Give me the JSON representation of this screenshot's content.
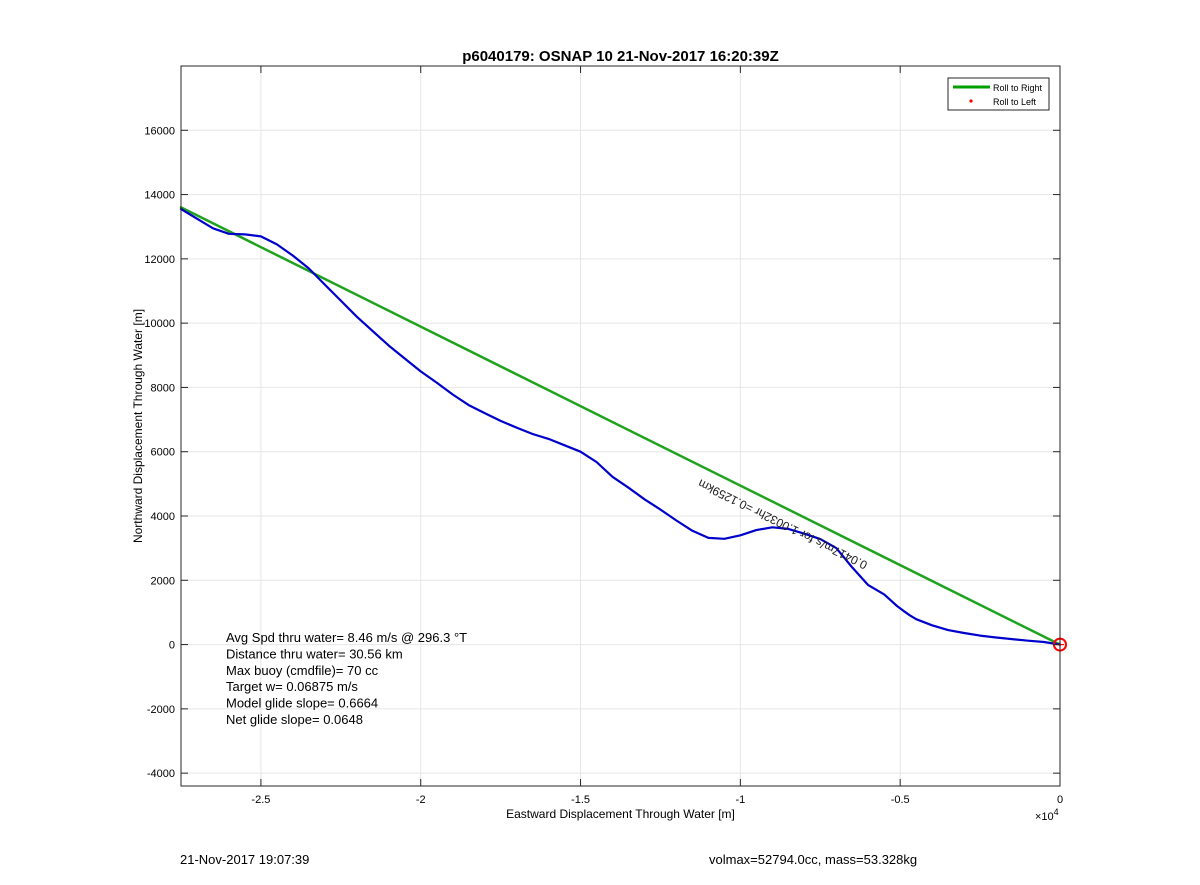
{
  "chart_data": {
    "type": "line",
    "title": "p6040179: OSNAP 10 21-Nov-2017 16:20:39Z",
    "xlabel": "Eastward Displacement Through Water [m]",
    "ylabel": "Northward Displacement Through Water [m]",
    "x_multiplier_label": "×10",
    "x_multiplier_exp": "4",
    "xlim": [
      -27500,
      0
    ],
    "ylim": [
      -4400,
      18000
    ],
    "grid": true,
    "xticks": [
      -25000,
      -20000,
      -15000,
      -10000,
      -5000,
      0
    ],
    "xtick_labels": [
      "-2.5",
      "-2",
      "-1.5",
      "-1",
      "-0.5",
      "0"
    ],
    "yticks": [
      -4000,
      -2000,
      0,
      2000,
      4000,
      6000,
      8000,
      10000,
      12000,
      14000,
      16000
    ],
    "ytick_labels": [
      "-4000",
      "-2000",
      "0",
      "2000",
      "4000",
      "6000",
      "8000",
      "10000",
      "12000",
      "14000",
      "16000"
    ],
    "legend": {
      "position": "top-right",
      "entries": [
        {
          "label": "Roll to Right",
          "color": "#00a000",
          "marker": "line"
        },
        {
          "label": "Roll to Left",
          "color": "#ff0000",
          "marker": "dot"
        }
      ]
    },
    "series": [
      {
        "name": "Roll to Right",
        "color": "#1fa31f",
        "x": [
          -27500,
          0
        ],
        "y": [
          13600,
          0
        ]
      },
      {
        "color": "#0000cc",
        "x": [
          -27500,
          -27000,
          -26500,
          -26000,
          -25500,
          -25000,
          -24500,
          -24000,
          -23500,
          -23000,
          -22500,
          -22000,
          -21500,
          -21000,
          -20500,
          -20000,
          -19500,
          -19000,
          -18500,
          -18000,
          -17500,
          -17000,
          -16500,
          -16000,
          -15500,
          -15000,
          -14500,
          -14000,
          -13500,
          -13000,
          -12500,
          -12000,
          -11500,
          -11000,
          -10500,
          -10000,
          -9500,
          -9000,
          -8500,
          -8000,
          -7500,
          -7000,
          -6500,
          -6000,
          -5500,
          -5300,
          -5100,
          -4900,
          -4700,
          -4500,
          -4000,
          -3500,
          -3000,
          -2500,
          -2000,
          -1500,
          -1000,
          -500,
          0
        ],
        "y": [
          13550,
          13250,
          12950,
          12780,
          12760,
          12700,
          12450,
          12100,
          11700,
          11200,
          10700,
          10200,
          9750,
          9300,
          8900,
          8500,
          8150,
          7780,
          7450,
          7200,
          6960,
          6750,
          6550,
          6400,
          6200,
          6000,
          5680,
          5220,
          4880,
          4520,
          4200,
          3860,
          3540,
          3320,
          3290,
          3400,
          3560,
          3650,
          3600,
          3450,
          3280,
          3000,
          2400,
          1850,
          1560,
          1380,
          1200,
          1050,
          910,
          790,
          600,
          450,
          360,
          280,
          220,
          170,
          120,
          80,
          0
        ]
      }
    ],
    "rotated_annotation": "0.0417m/s for 1.0032hr =0.1259km",
    "end_marker": {
      "x": 0,
      "y": 0,
      "color": "#ff0000"
    },
    "text_annotations": [
      {
        "text": "Avg Spd thru water=  8.46 m/s @ 296.3 °T"
      },
      {
        "text": "Distance thru water= 30.56 km"
      },
      {
        "text": "Max buoy (cmdfile)= 70 cc"
      },
      {
        "text": "Target w= 0.06875 m/s"
      },
      {
        "text": "Model glide slope= 0.6664"
      },
      {
        "text": "Net glide slope= 0.0648"
      }
    ]
  },
  "footer": {
    "timestamp": "21-Nov-2017 19:07:39",
    "mass_info": "volmax=52794.0cc, mass=53.328kg"
  }
}
